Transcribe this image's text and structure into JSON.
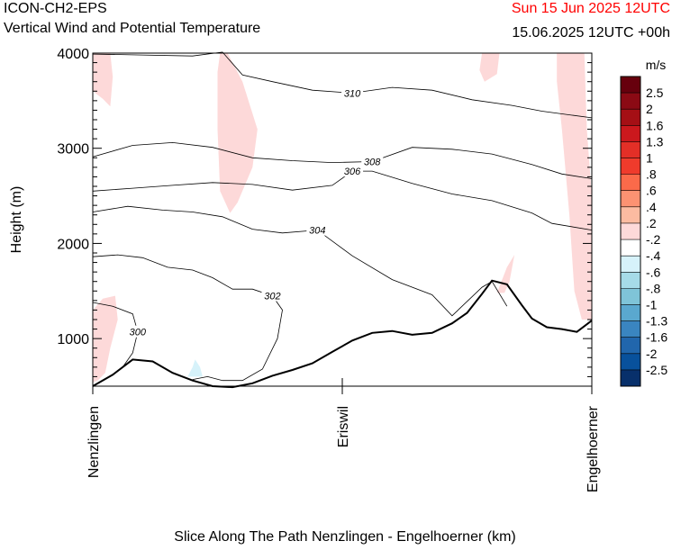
{
  "header": {
    "model": "ICON-CH2-EPS",
    "title": "Vertical Wind and Potential Temperature",
    "valid_time": "Sun 15 Jun 2025 12UTC",
    "run_time": "15.06.2025 12UTC +00h"
  },
  "colors": {
    "valid_time": "#ff0000",
    "weak_updraft_fill": "#fdd9d9",
    "weak_downdraft_fill": "#d6f2fa"
  },
  "chart_data": {
    "type": "contour",
    "xlabel": "Slice Along The Path Nenzlingen - Engelhoerner (km)",
    "ylabel": "Height (m)",
    "ylim": [
      500,
      4000
    ],
    "yticks": [
      1000,
      2000,
      3000,
      4000
    ],
    "xlim": [
      0,
      1
    ],
    "xticks": [
      {
        "pos": 0.0,
        "label": "Nenzlingen"
      },
      {
        "pos": 0.5,
        "label": "Eriswil"
      },
      {
        "pos": 1.0,
        "label": "Engelhoerner"
      }
    ],
    "terrain": {
      "x": [
        0,
        0.04,
        0.08,
        0.12,
        0.16,
        0.2,
        0.24,
        0.28,
        0.32,
        0.36,
        0.4,
        0.44,
        0.48,
        0.52,
        0.56,
        0.6,
        0.64,
        0.68,
        0.72,
        0.75,
        0.78,
        0.8,
        0.83,
        0.86,
        0.88,
        0.91,
        0.94,
        0.97,
        1.0
      ],
      "y": [
        500,
        620,
        780,
        760,
        640,
        560,
        500,
        490,
        530,
        610,
        670,
        740,
        860,
        980,
        1060,
        1080,
        1040,
        1060,
        1160,
        1270,
        1470,
        1610,
        1570,
        1350,
        1210,
        1120,
        1100,
        1070,
        1190
      ]
    },
    "theta_isolines": [
      {
        "label": "300",
        "x": [
          0,
          0.04,
          0.08,
          0.09,
          0.08,
          0.06,
          0.04
        ],
        "y": [
          1380,
          1340,
          1260,
          1070,
          850,
          700,
          620
        ]
      },
      {
        "label": "302",
        "x": [
          0,
          0.05,
          0.1,
          0.15,
          0.2,
          0.24,
          0.28,
          0.32,
          0.36,
          0.38,
          0.37,
          0.34,
          0.3,
          0.26,
          0.23,
          0.2
        ],
        "y": [
          1860,
          1880,
          1850,
          1750,
          1720,
          1640,
          1520,
          1520,
          1450,
          1300,
          1000,
          680,
          560,
          560,
          600,
          570
        ]
      },
      {
        "label": "304",
        "x": [
          0,
          0.07,
          0.14,
          0.2,
          0.26,
          0.32,
          0.38,
          0.45,
          0.52,
          0.6,
          0.68,
          0.72,
          0.78,
          0.8,
          0.83
        ],
        "y": [
          2330,
          2390,
          2350,
          2330,
          2280,
          2150,
          2110,
          2140,
          1870,
          1620,
          1460,
          1240,
          1540,
          1600,
          1340
        ]
      },
      {
        "label": "306",
        "x": [
          0,
          0.08,
          0.16,
          0.24,
          0.32,
          0.4,
          0.48,
          0.52,
          0.56,
          0.64,
          0.72,
          0.8,
          0.88,
          0.92,
          1.0
        ],
        "y": [
          2550,
          2580,
          2610,
          2640,
          2620,
          2560,
          2610,
          2760,
          2760,
          2630,
          2520,
          2450,
          2320,
          2210,
          2140
        ]
      },
      {
        "label": "308",
        "x": [
          0,
          0.08,
          0.16,
          0.24,
          0.32,
          0.4,
          0.48,
          0.56,
          0.64,
          0.72,
          0.8,
          0.88,
          0.94,
          1.0
        ],
        "y": [
          2910,
          3030,
          3060,
          3010,
          2900,
          2870,
          2850,
          2860,
          3010,
          2990,
          2940,
          2830,
          2730,
          2680
        ]
      },
      {
        "label": "310",
        "x": [
          0,
          0.1,
          0.2,
          0.26,
          0.3,
          0.36,
          0.44,
          0.52,
          0.6,
          0.68,
          0.76,
          0.84,
          0.9,
          1.0
        ],
        "y": [
          3990,
          3980,
          3970,
          4010,
          3770,
          3700,
          3610,
          3580,
          3640,
          3610,
          3510,
          3450,
          3390,
          3320
        ]
      }
    ],
    "colorbar": {
      "unit": "m/s",
      "labels": [
        "2.5",
        "2",
        "1.6",
        "1.3",
        "1",
        ".8",
        ".6",
        ".4",
        ".2",
        "-.2",
        "-.4",
        "-.6",
        "-.8",
        "-1",
        "-1.3",
        "-1.6",
        "-2",
        "-2.5"
      ],
      "colors": [
        "#67000d",
        "#8b0a14",
        "#a50f15",
        "#cb181d",
        "#e32f27",
        "#ef3b2c",
        "#fb6a4a",
        "#fc9272",
        "#fcbba1",
        "#fdd9d9",
        "#ffffff",
        "#d6f2fa",
        "#a6dbe8",
        "#7fc4d8",
        "#5aa8cf",
        "#3a85c0",
        "#2166ac",
        "#08519c",
        "#08306b"
      ]
    }
  }
}
